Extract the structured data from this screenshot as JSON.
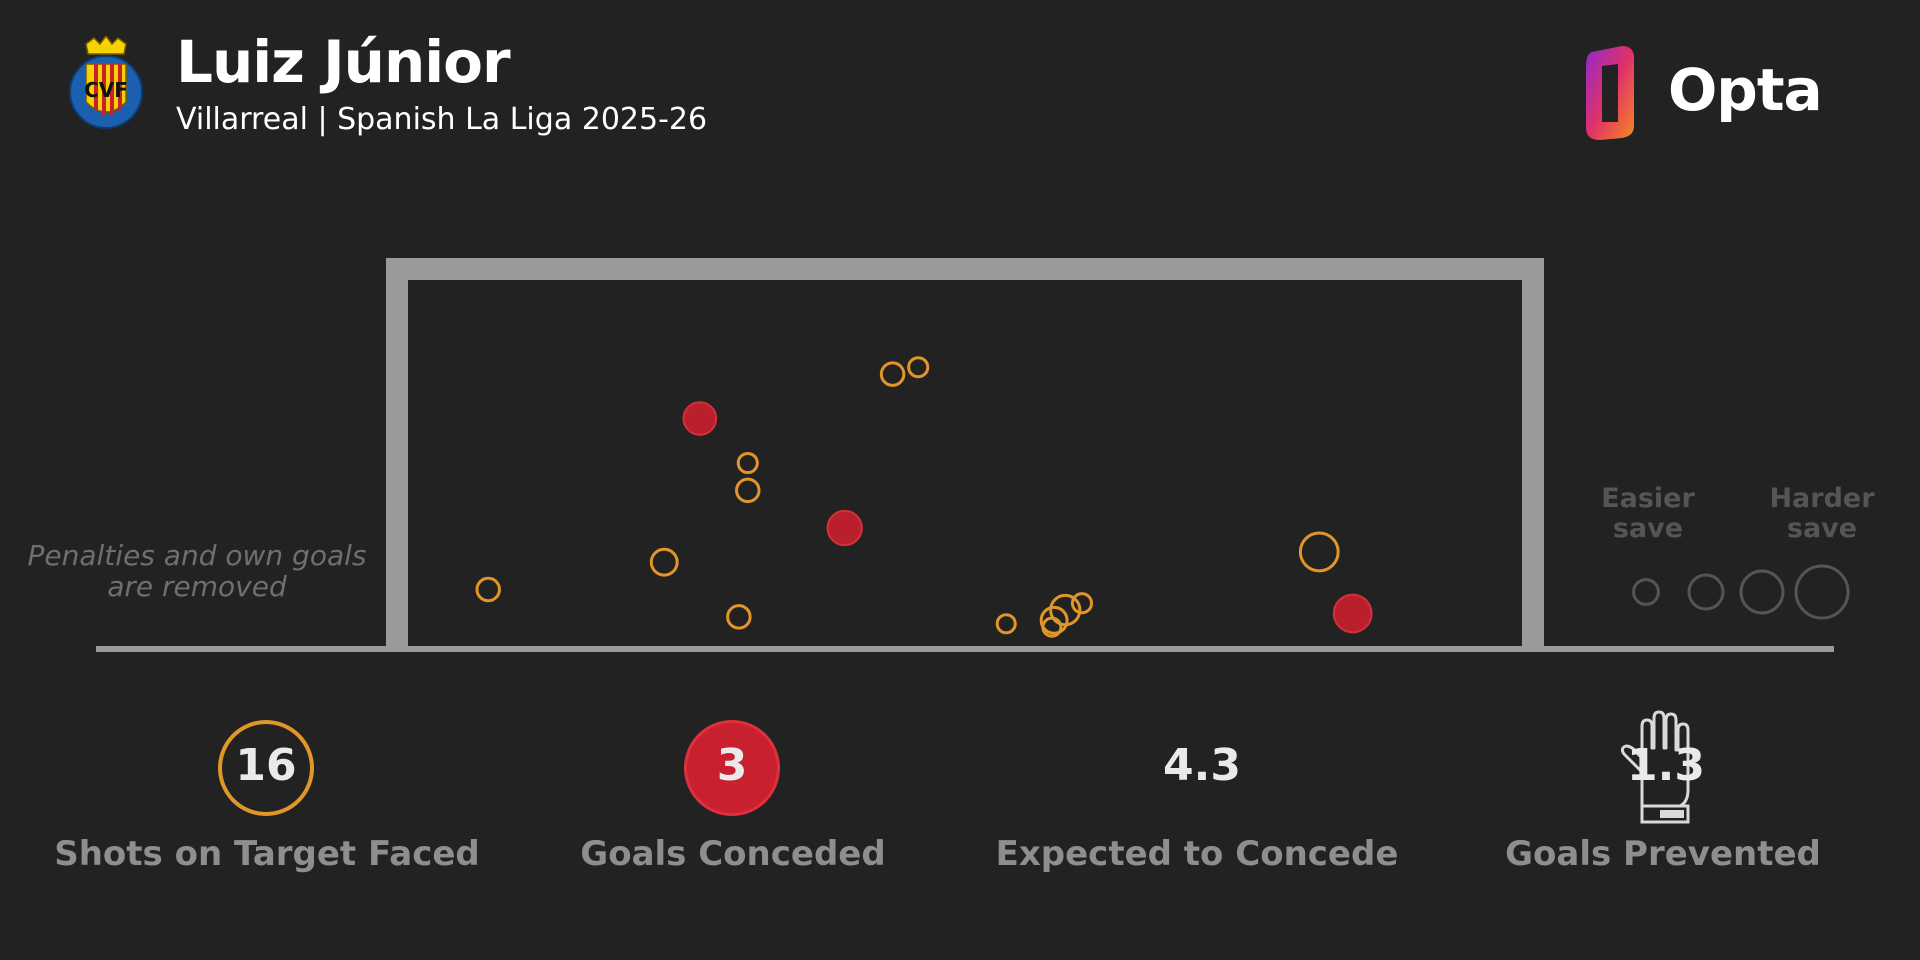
{
  "header": {
    "player_name": "Luiz Júnior",
    "subtitle": "Villarreal | Spanish La Liga 2025-26",
    "crest_letters": "CVF",
    "brand": "Opta"
  },
  "note": {
    "line1": "Penalties and own goals",
    "line2": "are removed"
  },
  "legend": {
    "easier_line1": "Easier",
    "easier_line2": "save",
    "harder_line1": "Harder",
    "harder_line2": "save"
  },
  "stats": [
    {
      "value": "16",
      "label": "Shots on Target Faced"
    },
    {
      "value": "3",
      "label": "Goals Conceded"
    },
    {
      "value": "4.3",
      "label": "Expected to Concede"
    },
    {
      "value": "1.3",
      "label": "Goals Prevented"
    }
  ],
  "colors": {
    "background": "#222222",
    "save": "#e1962a",
    "goal": "#c8202e",
    "frame": "#9a9a9a",
    "opta_gradient": [
      "#8e2ad0",
      "#e0306a",
      "#f58a1f"
    ]
  },
  "chart_data": {
    "type": "scatter",
    "title": "",
    "xlabel": "",
    "ylabel": "",
    "xlim": [
      0,
      1
    ],
    "ylim": [
      0,
      1
    ],
    "size_meaning": "difficulty of save (xG on target)",
    "series": [
      {
        "name": "save",
        "points": [
          {
            "x": 0.435,
            "y": 0.76,
            "size": 0.25
          },
          {
            "x": 0.458,
            "y": 0.78,
            "size": 0.15
          },
          {
            "x": 0.305,
            "y": 0.5,
            "size": 0.15
          },
          {
            "x": 0.305,
            "y": 0.42,
            "size": 0.25
          },
          {
            "x": 0.23,
            "y": 0.21,
            "size": 0.35
          },
          {
            "x": 0.072,
            "y": 0.13,
            "size": 0.25
          },
          {
            "x": 0.297,
            "y": 0.05,
            "size": 0.25
          },
          {
            "x": 0.537,
            "y": 0.03,
            "size": 0.12
          },
          {
            "x": 0.605,
            "y": 0.09,
            "size": 0.15
          },
          {
            "x": 0.59,
            "y": 0.07,
            "size": 0.45
          },
          {
            "x": 0.58,
            "y": 0.04,
            "size": 0.35
          },
          {
            "x": 0.578,
            "y": 0.02,
            "size": 0.12
          },
          {
            "x": 0.818,
            "y": 0.24,
            "size": 0.7
          }
        ]
      },
      {
        "name": "goal",
        "points": [
          {
            "x": 0.262,
            "y": 0.63,
            "size": 0.55
          },
          {
            "x": 0.392,
            "y": 0.31,
            "size": 0.6
          },
          {
            "x": 0.848,
            "y": 0.06,
            "size": 0.7
          }
        ]
      }
    ],
    "legend_sizes": [
      0.12,
      0.35,
      0.55,
      0.8
    ]
  }
}
